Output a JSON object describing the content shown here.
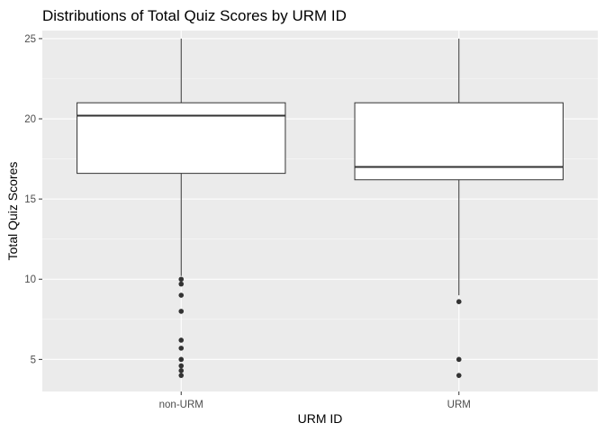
{
  "chart_data": {
    "type": "boxplot",
    "title": "Distributions of Total Quiz Scores by URM ID",
    "xlabel": "URM ID",
    "ylabel": "Total Quiz Scores",
    "categories": [
      "non-URM",
      "URM"
    ],
    "ylim": [
      3,
      25.5
    ],
    "y_ticks": [
      5,
      10,
      15,
      20,
      25
    ],
    "y_tick_labels": [
      "5",
      "10",
      "15",
      "20",
      "25"
    ],
    "grid": true,
    "legend": "none",
    "boxes": [
      {
        "category": "non-URM",
        "whisker_low": 10.2,
        "q1": 16.6,
        "median": 20.2,
        "q3": 21.0,
        "whisker_high": 25.0,
        "outliers": [
          10.0,
          9.7,
          9.0,
          8.0,
          6.2,
          5.7,
          5.0,
          4.6,
          4.3,
          4.0
        ]
      },
      {
        "category": "URM",
        "whisker_low": 9.0,
        "q1": 16.2,
        "median": 17.0,
        "q3": 21.0,
        "whisker_high": 25.0,
        "outliers": [
          8.6,
          5.0,
          4.0
        ]
      }
    ],
    "colors": {
      "panel_bg": "#ebebeb",
      "grid_major": "#ffffff",
      "box_fill": "#ffffff",
      "box_stroke": "#333333",
      "outlier": "#333333",
      "tick_text": "#4d4d4d",
      "tick_mark": "#333333"
    }
  }
}
